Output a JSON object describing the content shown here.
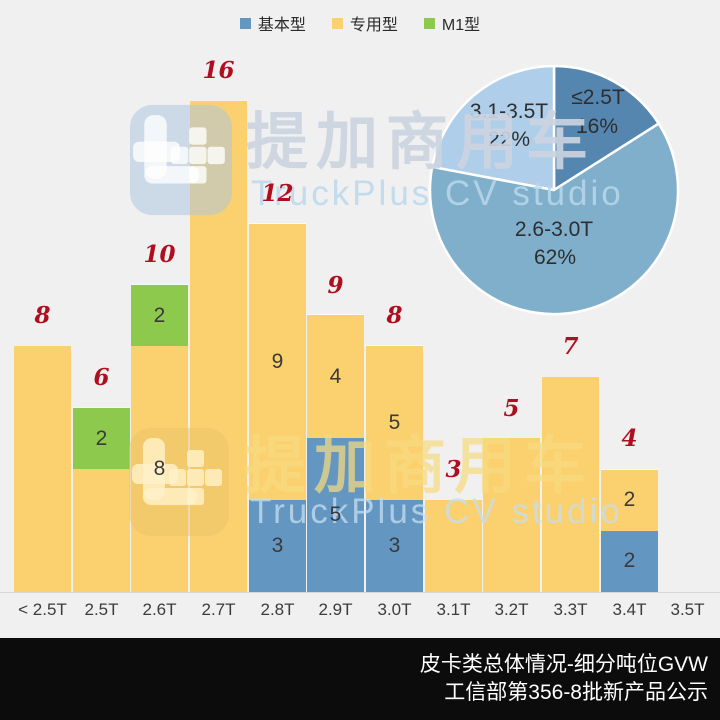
{
  "legend": {
    "items": [
      {
        "label": "基本型",
        "color": "#6397C2"
      },
      {
        "label": "专用型",
        "color": "#FBD06E"
      },
      {
        "label": "M1型",
        "color": "#8CC94D"
      }
    ]
  },
  "watermark": {
    "brand_cn": "提加商用车",
    "brand_en": "TruckPlus CV studio",
    "logo_icon": "truckplus-logo"
  },
  "footer": {
    "line1": "皮卡类总体情况-细分吨位GVW",
    "line2": "工信部第356-8批新产品公示",
    "background": "#0C0C0C",
    "text_color": "#FFFFFF"
  },
  "colors": {
    "background": "#F0F0F0",
    "axis_line": "#D8D8D8",
    "total_label": "#AF0E1F",
    "segment_label": "#3A3A3A"
  },
  "chart_data": [
    {
      "type": "bar",
      "stacked": true,
      "title": "",
      "xlabel": "",
      "ylabel": "",
      "ylim": [
        0,
        16.5
      ],
      "grid": false,
      "legend_position": "top",
      "categories": [
        "< 2.5T",
        "2.5T",
        "2.6T",
        "2.7T",
        "2.8T",
        "2.9T",
        "3.0T",
        "3.1T",
        "3.2T",
        "3.3T",
        "3.4T",
        "3.5T"
      ],
      "series": [
        {
          "name": "基本型",
          "color": "#6397C2",
          "values": [
            0,
            0,
            0,
            0,
            3,
            5,
            3,
            0,
            0,
            0,
            2,
            0
          ],
          "show_labels": [
            0,
            0,
            0,
            0,
            1,
            1,
            1,
            0,
            0,
            0,
            1,
            0
          ]
        },
        {
          "name": "专用型",
          "color": "#FBD06E",
          "values": [
            8,
            4,
            8,
            16,
            9,
            4,
            5,
            3,
            5,
            7,
            2,
            0
          ],
          "show_labels": [
            0,
            0,
            1,
            0,
            1,
            1,
            1,
            0,
            0,
            0,
            1,
            0
          ]
        },
        {
          "name": "M1型",
          "color": "#8CC94D",
          "values": [
            0,
            2,
            2,
            0,
            0,
            0,
            0,
            0,
            0,
            0,
            0,
            0
          ],
          "show_labels": [
            0,
            1,
            1,
            0,
            0,
            0,
            0,
            0,
            0,
            0,
            0,
            0
          ]
        }
      ],
      "totals": [
        8,
        6,
        10,
        16,
        12,
        9,
        8,
        3,
        5,
        7,
        4,
        0
      ]
    },
    {
      "type": "pie",
      "title": "",
      "start_angle_deg": 0,
      "direction": "clockwise",
      "slices": [
        {
          "label": "≤2.5T",
          "pct": 16,
          "color": "#5586B0"
        },
        {
          "label": "2.6-3.0T",
          "pct": 62,
          "color": "#7FAFCB"
        },
        {
          "label": "3.1-3.5T",
          "pct": 22,
          "color": "#AFCEE9"
        }
      ]
    }
  ]
}
